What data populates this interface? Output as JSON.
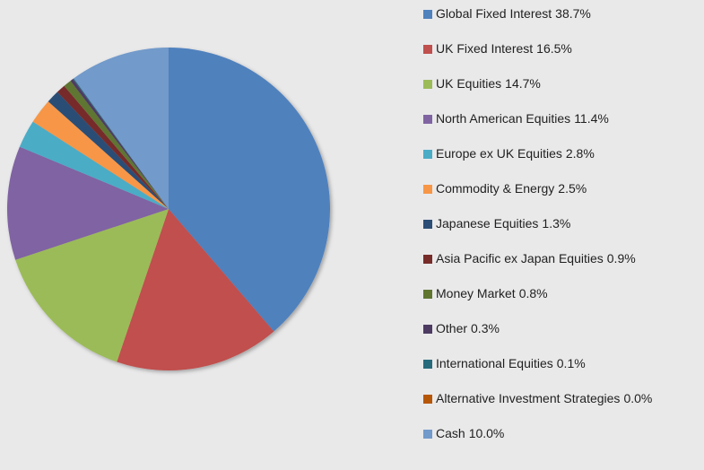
{
  "chart_data": {
    "type": "pie",
    "categories": [
      "Global Fixed Interest",
      "UK Fixed Interest",
      "UK Equities",
      "North American Equities",
      "Europe ex UK Equities",
      "Commodity & Energy",
      "Japanese Equities",
      "Asia Pacific ex Japan Equities",
      "Money Market",
      "Other",
      "International Equities",
      "Alternative Investment Strategies",
      "Cash"
    ],
    "values": [
      38.7,
      16.5,
      14.7,
      11.4,
      2.8,
      2.5,
      1.3,
      0.9,
      0.8,
      0.3,
      0.1,
      0.0,
      10.0
    ],
    "value_labels": [
      "38.7%",
      "16.5%",
      "14.7%",
      "11.4%",
      "2.8%",
      "2.5%",
      "1.3%",
      "0.9%",
      "0.8%",
      "0.3%",
      "0.1%",
      "0.0%",
      "10.0%"
    ],
    "colors": [
      "#4f81bd",
      "#c0504d",
      "#9bbb59",
      "#8064a2",
      "#4bacc6",
      "#f79646",
      "#2c4d75",
      "#772c2a",
      "#5f7530",
      "#4d3b62",
      "#276a7c",
      "#b65708",
      "#729aca"
    ],
    "legend": "right"
  }
}
